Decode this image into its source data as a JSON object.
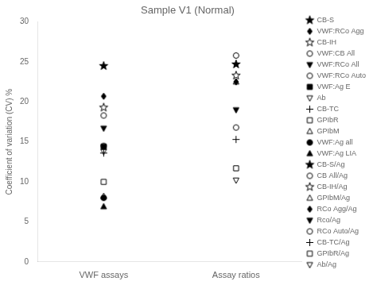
{
  "chart_data": {
    "type": "scatter",
    "title": "Sample V1 (Normal)",
    "ylabel": "Coefficient of variation (CV) %",
    "categories": [
      "VWF assays",
      "Assay ratios"
    ],
    "color": "#000000",
    "ylim": [
      0,
      30
    ],
    "yticks": [
      0,
      5,
      10,
      15,
      20,
      25,
      30
    ],
    "grid": false,
    "legend": "right",
    "series": [
      {
        "name": "CB-S",
        "marker": "filled-star",
        "values": [
          24.5,
          null
        ]
      },
      {
        "name": "VWF:RCo Agg",
        "marker": "filled-diamond",
        "values": [
          20.7,
          null
        ]
      },
      {
        "name": "CB-IH",
        "marker": "open-star",
        "values": [
          19.3,
          null
        ]
      },
      {
        "name": "VWF:CB All",
        "marker": "open-circle",
        "values": [
          18.3,
          null
        ]
      },
      {
        "name": "VWF:RCo All",
        "marker": "filled-triangle-down",
        "values": [
          16.7,
          null
        ]
      },
      {
        "name": "VWF:RCo Auto",
        "marker": "open-circle",
        "values": [
          14.5,
          null
        ]
      },
      {
        "name": "VWF:Ag E",
        "marker": "filled-square",
        "values": [
          14.4,
          null
        ]
      },
      {
        "name": "Ab",
        "marker": "open-triangle-down",
        "values": [
          13.8,
          null
        ]
      },
      {
        "name": "CB-TC",
        "marker": "plus",
        "values": [
          13.6,
          null
        ]
      },
      {
        "name": "GPIbR",
        "marker": "open-square",
        "values": [
          10.0,
          null
        ]
      },
      {
        "name": "GPIbM",
        "marker": "open-triangle-up",
        "values": [
          8.2,
          null
        ]
      },
      {
        "name": "VWF:Ag all",
        "marker": "filled-circle",
        "values": [
          8.0,
          null
        ]
      },
      {
        "name": "VWF:Ag LIA",
        "marker": "filled-triangle-up",
        "values": [
          6.9,
          null
        ]
      },
      {
        "name": "CB-S/Ag",
        "marker": "filled-star",
        "values": [
          null,
          24.7
        ]
      },
      {
        "name": "CB All/Ag",
        "marker": "open-circle",
        "values": [
          null,
          25.8
        ]
      },
      {
        "name": "CB-IH/Ag",
        "marker": "open-star",
        "values": [
          null,
          23.3
        ]
      },
      {
        "name": "GPIbM/Ag",
        "marker": "open-triangle-up",
        "values": [
          null,
          22.5
        ]
      },
      {
        "name": "RCo Agg/Ag",
        "marker": "filled-diamond",
        "values": [
          null,
          22.5
        ]
      },
      {
        "name": "Rco/Ag",
        "marker": "filled-triangle-down",
        "values": [
          null,
          19.0
        ]
      },
      {
        "name": "RCo Auto/Ag",
        "marker": "open-circle",
        "values": [
          null,
          16.8
        ]
      },
      {
        "name": "CB-TC/Ag",
        "marker": "plus",
        "values": [
          null,
          15.3
        ]
      },
      {
        "name": "GPIbR/Ag",
        "marker": "open-square",
        "values": [
          null,
          11.7
        ]
      },
      {
        "name": "Ab/Ag",
        "marker": "open-triangle-down",
        "values": [
          null,
          10.2
        ]
      }
    ]
  }
}
